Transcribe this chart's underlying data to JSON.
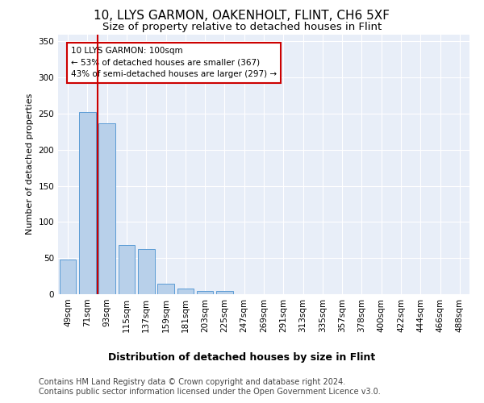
{
  "title": "10, LLYS GARMON, OAKENHOLT, FLINT, CH6 5XF",
  "subtitle": "Size of property relative to detached houses in Flint",
  "xlabel": "Distribution of detached houses by size in Flint",
  "ylabel": "Number of detached properties",
  "categories": [
    "49sqm",
    "71sqm",
    "93sqm",
    "115sqm",
    "137sqm",
    "159sqm",
    "181sqm",
    "203sqm",
    "225sqm",
    "247sqm",
    "269sqm",
    "291sqm",
    "313sqm",
    "335sqm",
    "357sqm",
    "378sqm",
    "400sqm",
    "422sqm",
    "444sqm",
    "466sqm",
    "488sqm"
  ],
  "values": [
    48,
    252,
    237,
    68,
    63,
    15,
    8,
    5,
    4,
    0,
    0,
    0,
    0,
    0,
    0,
    0,
    0,
    0,
    0,
    0,
    0
  ],
  "bar_color": "#b8d0ea",
  "bar_edge_color": "#5b9bd5",
  "vline_color": "#cc0000",
  "vline_x_data": 1.5,
  "annotation_text": "10 LLYS GARMON: 100sqm\n← 53% of detached houses are smaller (367)\n43% of semi-detached houses are larger (297) →",
  "annotation_box_color": "#ffffff",
  "annotation_box_edge": "#cc0000",
  "ylim": [
    0,
    360
  ],
  "yticks": [
    0,
    50,
    100,
    150,
    200,
    250,
    300,
    350
  ],
  "bg_color": "#e8eef8",
  "footer1": "Contains HM Land Registry data © Crown copyright and database right 2024.",
  "footer2": "Contains public sector information licensed under the Open Government Licence v3.0.",
  "title_fontsize": 11,
  "subtitle_fontsize": 9.5,
  "xlabel_fontsize": 9,
  "ylabel_fontsize": 8,
  "tick_fontsize": 7.5,
  "annotation_fontsize": 7.5,
  "footer_fontsize": 7
}
